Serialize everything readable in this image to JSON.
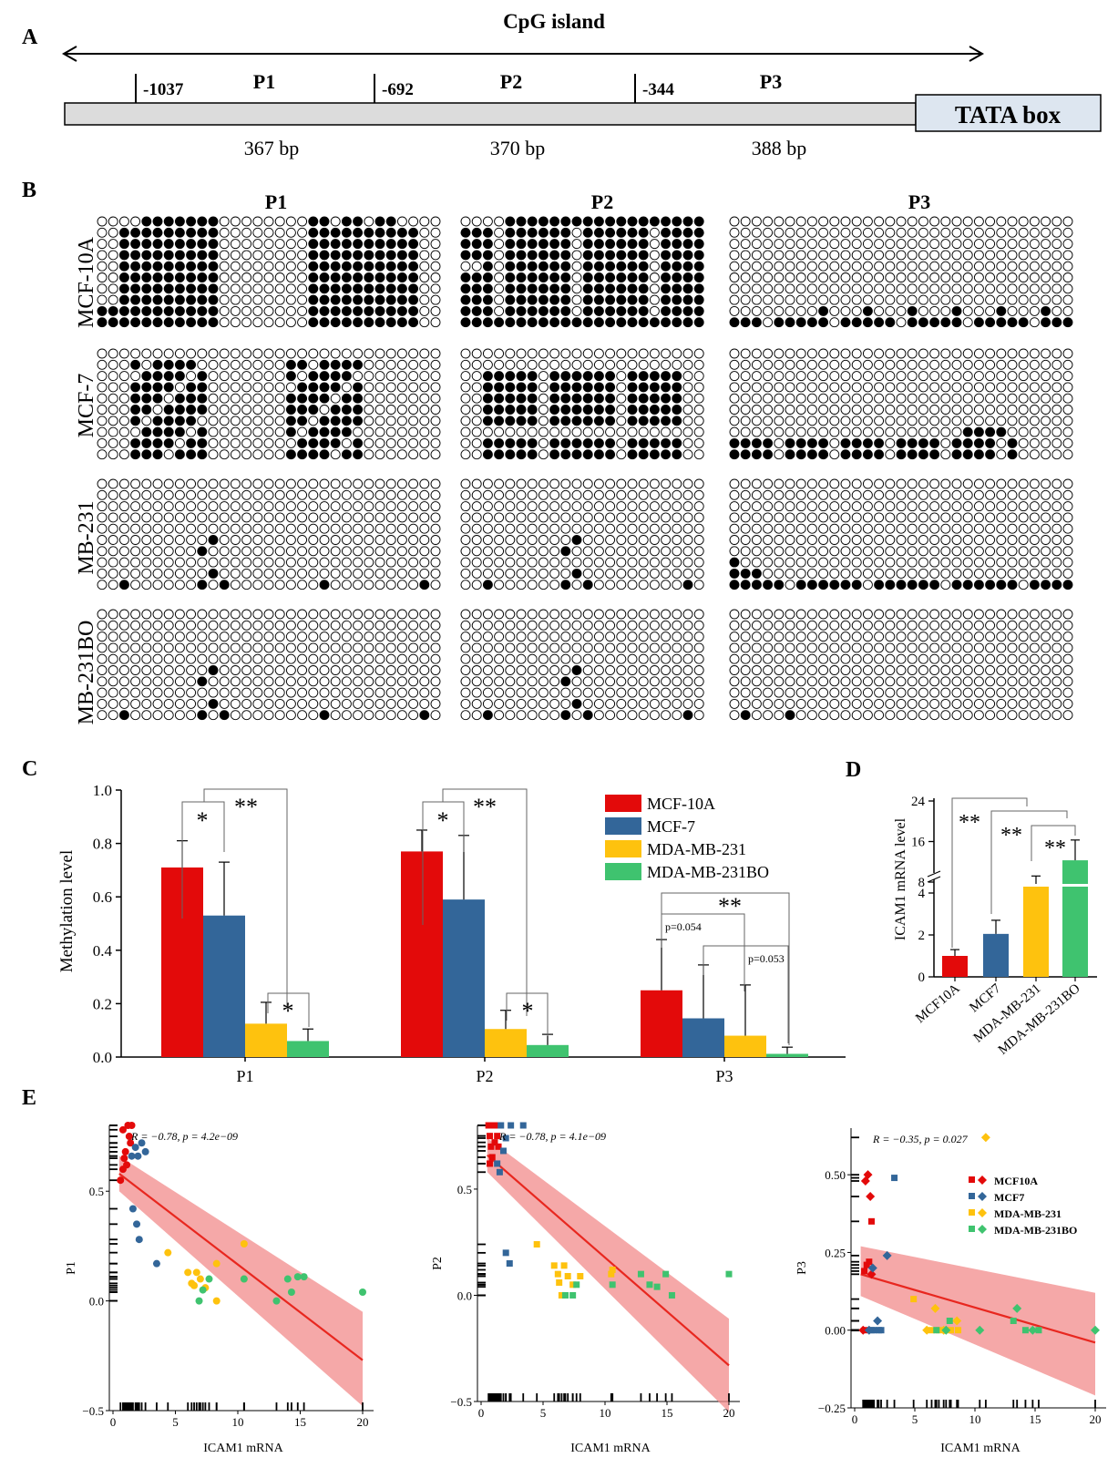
{
  "panel_letters": {
    "a": "A",
    "b": "B",
    "c": "C",
    "d": "D",
    "e": "E"
  },
  "panel_a": {
    "title": "CpG island",
    "segments": [
      "P1",
      "P2",
      "P3"
    ],
    "positions": [
      "-1037",
      "-692",
      "-344"
    ],
    "lengths": [
      "367 bp",
      "370 bp",
      "388 bp"
    ],
    "box_label": "TATA box"
  },
  "panel_b": {
    "columns": [
      "P1",
      "P2",
      "P3"
    ],
    "rows": [
      "MCF-10A",
      "MCF-7",
      "MB-231",
      "MB-231BO"
    ],
    "colors": {
      "methylated": "#000000",
      "unmethylated": "#ffffff"
    }
  },
  "colors": {
    "mcf10a": "#e30a0a",
    "mcf7": "#336699",
    "mda231": "#fec20e",
    "mda231bo": "#3fc36f",
    "fit": "#e8271f",
    "band": "#f28b8b"
  },
  "chart_data": [
    {
      "id": "C",
      "type": "bar",
      "ylabel": "Methylation level",
      "ylim": [
        0,
        1.0
      ],
      "yticks": [
        "0.0",
        "0.2",
        "0.4",
        "0.6",
        "0.8",
        "1.0"
      ],
      "categories": [
        "P1",
        "P2",
        "P3"
      ],
      "legend_position": "top-right",
      "series": [
        {
          "name": "MCF-10A",
          "values": [
            0.71,
            0.77,
            0.25
          ],
          "errors": [
            0.1,
            0.08,
            0.19
          ]
        },
        {
          "name": "MCF-7",
          "values": [
            0.53,
            0.59,
            0.145
          ],
          "errors": [
            0.2,
            0.24,
            0.2
          ]
        },
        {
          "name": "MDA-MB-231",
          "values": [
            0.125,
            0.105,
            0.08
          ],
          "errors": [
            0.08,
            0.07,
            0.19
          ]
        },
        {
          "name": "MDA-MB-231BO",
          "values": [
            0.06,
            0.045,
            0.012
          ],
          "errors": [
            0.045,
            0.04,
            0.025
          ]
        }
      ],
      "annotations": [
        "*",
        "**",
        "*",
        "*",
        "**",
        "*",
        "**",
        "p=0.054",
        "p=0.053"
      ]
    },
    {
      "id": "D",
      "type": "bar",
      "ylabel": "ICAM1 mRNA level",
      "yticks": [
        "0",
        "2",
        "4",
        "8",
        "16",
        "24"
      ],
      "axis_break": [
        4,
        8
      ],
      "categories": [
        "MCF10A",
        "MCF7",
        "MDA-MB-231",
        "MDA-MB-231BO"
      ],
      "values": [
        1.0,
        2.05,
        7.2,
        12.3
      ],
      "errors": [
        0.3,
        0.65,
        2.0,
        4.0
      ],
      "annotations": [
        "**",
        "**",
        "**"
      ]
    },
    {
      "id": "E-P1",
      "type": "scatter",
      "xlabel": "ICAM1 mRNA",
      "ylabel": "P1",
      "stat": "R = −0.78, p = 4.2e−09",
      "xlim": [
        0,
        20
      ],
      "ylim": [
        -0.5,
        0.8
      ],
      "xticks": [
        "0",
        "5",
        "10",
        "15",
        "20"
      ],
      "yticks": [
        "−0.5",
        "0.0",
        "0.5"
      ],
      "fit": {
        "x": [
          0.5,
          20
        ],
        "y": [
          0.58,
          -0.27
        ],
        "band_start": [
          0.66,
          0.5
        ],
        "band_end": [
          -0.05,
          -0.48
        ]
      },
      "points": {
        "MCF10A": [
          [
            0.6,
            0.55
          ],
          [
            0.8,
            0.6
          ],
          [
            0.9,
            0.65
          ],
          [
            1.0,
            0.68
          ],
          [
            1.1,
            0.62
          ],
          [
            1.2,
            0.8
          ],
          [
            1.3,
            0.75
          ],
          [
            1.4,
            0.72
          ],
          [
            0.8,
            0.78
          ],
          [
            1.5,
            0.8
          ]
        ],
        "MCF7": [
          [
            1.5,
            0.66
          ],
          [
            1.8,
            0.7
          ],
          [
            2.0,
            0.66
          ],
          [
            2.3,
            0.72
          ],
          [
            2.6,
            0.68
          ],
          [
            1.6,
            0.42
          ],
          [
            1.9,
            0.35
          ],
          [
            2.1,
            0.28
          ],
          [
            3.5,
            0.17
          ]
        ],
        "MDA-MB-231": [
          [
            4.4,
            0.22
          ],
          [
            6.0,
            0.13
          ],
          [
            6.3,
            0.08
          ],
          [
            6.7,
            0.13
          ],
          [
            7.0,
            0.1
          ],
          [
            7.4,
            0.06
          ],
          [
            8.3,
            0.17
          ],
          [
            8.3,
            0.0
          ],
          [
            10.5,
            0.1
          ],
          [
            10.5,
            0.26
          ],
          [
            6.5,
            0.07
          ]
        ],
        "MDA-MB-231BO": [
          [
            6.9,
            0.0
          ],
          [
            7.2,
            0.05
          ],
          [
            7.7,
            0.1
          ],
          [
            10.5,
            0.1
          ],
          [
            13.1,
            0.0
          ],
          [
            14.0,
            0.1
          ],
          [
            14.3,
            0.04
          ],
          [
            14.8,
            0.11
          ],
          [
            15.3,
            0.11
          ],
          [
            20.0,
            0.04
          ]
        ]
      }
    },
    {
      "id": "E-P2",
      "type": "scatter",
      "xlabel": "ICAM1 mRNA",
      "ylabel": "P2",
      "stat": "R = −0.78, p = 4.1e−09",
      "xlim": [
        0,
        20
      ],
      "ylim": [
        -0.5,
        0.8
      ],
      "xticks": [
        "0",
        "5",
        "10",
        "15",
        "20"
      ],
      "yticks": [
        "−0.5",
        "0.0",
        "0.5"
      ],
      "fit": {
        "x": [
          0.5,
          20
        ],
        "y": [
          0.66,
          -0.33
        ],
        "band_start": [
          0.74,
          0.58
        ],
        "band_end": [
          -0.11,
          -0.55
        ]
      },
      "points": {
        "MCF10A": [
          [
            0.6,
            0.8
          ],
          [
            0.7,
            0.75
          ],
          [
            0.8,
            0.7
          ],
          [
            0.9,
            0.65
          ],
          [
            1.0,
            0.8
          ],
          [
            1.1,
            0.72
          ],
          [
            0.7,
            0.62
          ],
          [
            1.2,
            0.8
          ],
          [
            1.3,
            0.75
          ],
          [
            1.4,
            0.7
          ]
        ],
        "MCF7": [
          [
            1.6,
            0.8
          ],
          [
            1.8,
            0.68
          ],
          [
            2.0,
            0.74
          ],
          [
            2.4,
            0.8
          ],
          [
            3.4,
            0.8
          ],
          [
            1.3,
            0.62
          ],
          [
            1.5,
            0.58
          ],
          [
            2.0,
            0.2
          ],
          [
            2.3,
            0.15
          ]
        ],
        "MDA-MB-231": [
          [
            4.5,
            0.24
          ],
          [
            5.9,
            0.14
          ],
          [
            6.2,
            0.1
          ],
          [
            6.3,
            0.06
          ],
          [
            6.7,
            0.14
          ],
          [
            7.0,
            0.09
          ],
          [
            7.4,
            0.05
          ],
          [
            8.0,
            0.09
          ],
          [
            10.5,
            0.1
          ],
          [
            10.6,
            0.12
          ],
          [
            6.5,
            0.0
          ]
        ],
        "MDA-MB-231BO": [
          [
            6.8,
            0.0
          ],
          [
            7.4,
            0.0
          ],
          [
            7.7,
            0.05
          ],
          [
            10.6,
            0.05
          ],
          [
            12.9,
            0.1
          ],
          [
            13.6,
            0.05
          ],
          [
            14.2,
            0.04
          ],
          [
            14.9,
            0.1
          ],
          [
            15.4,
            0.0
          ],
          [
            20.0,
            0.1
          ]
        ]
      }
    },
    {
      "id": "E-P3",
      "type": "scatter",
      "xlabel": "ICAM1 mRNA",
      "ylabel": "P3",
      "stat": "R = −0.35, p = 0.027",
      "xlim": [
        0,
        20
      ],
      "ylim": [
        -0.25,
        0.65
      ],
      "xticks": [
        "0",
        "5",
        "10",
        "15",
        "20"
      ],
      "yticks": [
        "−0.25",
        "0.00",
        "0.25",
        "0.50"
      ],
      "legend_position": "top-right",
      "legend": [
        "MCF10A",
        "MCF7",
        "MDA-MB-231",
        "MDA-MB-231BO"
      ],
      "fit": {
        "x": [
          0.5,
          20
        ],
        "y": [
          0.18,
          -0.04
        ],
        "band_start": [
          0.27,
          0.11
        ],
        "band_end": [
          0.12,
          -0.21
        ]
      },
      "points": {
        "MCF10A": [
          [
            0.8,
            0.19
          ],
          [
            0.9,
            0.48
          ],
          [
            1.0,
            0.21
          ],
          [
            1.1,
            0.5
          ],
          [
            1.2,
            0.22
          ],
          [
            1.3,
            0.43
          ],
          [
            1.4,
            0.35
          ],
          [
            0.7,
            0.0
          ],
          [
            1.0,
            0.0
          ],
          [
            1.4,
            0.18
          ]
        ],
        "MCF7": [
          [
            1.4,
            0.0
          ],
          [
            1.5,
            0.2
          ],
          [
            1.6,
            0.0
          ],
          [
            1.9,
            0.03
          ],
          [
            2.2,
            0.0
          ],
          [
            2.7,
            0.24
          ],
          [
            3.3,
            0.49
          ],
          [
            1.2,
            0.0
          ],
          [
            2.0,
            0.0
          ]
        ],
        "MDA-MB-231": [
          [
            4.9,
            0.1
          ],
          [
            6.0,
            0.0
          ],
          [
            6.4,
            0.0
          ],
          [
            6.7,
            0.07
          ],
          [
            7.0,
            0.0
          ],
          [
            7.4,
            0.0
          ],
          [
            8.0,
            0.0
          ],
          [
            8.5,
            0.03
          ],
          [
            8.6,
            0.0
          ],
          [
            10.9,
            0.62
          ]
        ],
        "MDA-MB-231BO": [
          [
            6.8,
            0.0
          ],
          [
            7.6,
            0.0
          ],
          [
            7.9,
            0.03
          ],
          [
            10.4,
            0.0
          ],
          [
            13.2,
            0.03
          ],
          [
            13.5,
            0.07
          ],
          [
            14.2,
            0.0
          ],
          [
            14.8,
            0.0
          ],
          [
            15.3,
            0.0
          ],
          [
            20.0,
            0.0
          ]
        ]
      }
    }
  ]
}
